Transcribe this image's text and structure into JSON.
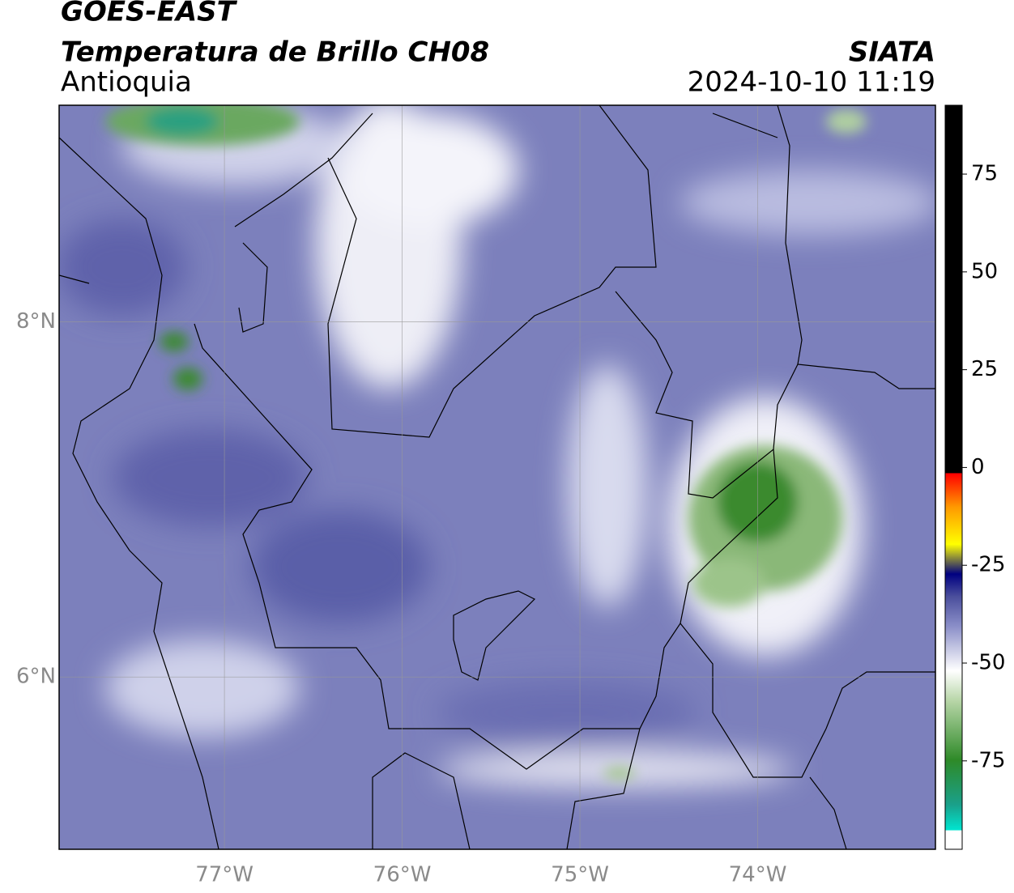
{
  "header": {
    "title": "GOES-EAST",
    "subtitle": "Temperatura de Brillo CH08",
    "region": "Antioquia",
    "source": "SIATA",
    "datetime": "2024-10-10 11:19"
  },
  "map": {
    "lonlim": [
      -77.93,
      -73.0
    ],
    "latlim": [
      5.03,
      9.22
    ],
    "lonticks": [
      {
        "value": -77,
        "label": "77°W"
      },
      {
        "value": -76,
        "label": "76°W"
      },
      {
        "value": -75,
        "label": "75°W"
      },
      {
        "value": -74,
        "label": "74°W"
      }
    ],
    "latticks": [
      {
        "value": 8,
        "label": "8°N"
      },
      {
        "value": 6,
        "label": "6°N"
      }
    ],
    "grid": true
  },
  "colorbar": {
    "clim": [
      -97.6,
      92.6
    ],
    "ticks": [
      -75,
      -50,
      -25,
      0,
      25,
      50,
      75
    ]
  }
}
